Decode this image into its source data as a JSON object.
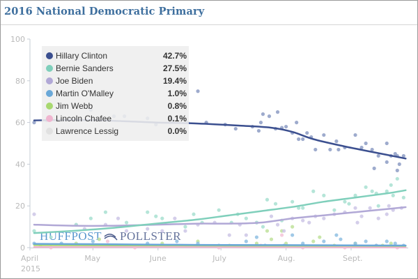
{
  "title": "2016 National Democratic Primary",
  "watermark": {
    "left": "HUFFPOST",
    "right": "POLLSTER",
    "icon": "pollster-swoosh-icon"
  },
  "chart_data": {
    "type": "scatter",
    "title": "2016 National Democratic Primary",
    "xlabel": "",
    "ylabel": "",
    "ylim": [
      0,
      100
    ],
    "yticks": [
      "0",
      "20",
      "40",
      "60",
      "80",
      "100"
    ],
    "ytick_values": [
      0,
      20,
      40,
      60,
      80,
      100
    ],
    "xticks": [
      {
        "label": "April",
        "sub": "2015",
        "day": 0
      },
      {
        "label": "May",
        "sub": "",
        "day": 30
      },
      {
        "label": "June",
        "sub": "",
        "day": 61
      },
      {
        "label": "July",
        "sub": "",
        "day": 91
      },
      {
        "label": "Aug.",
        "sub": "",
        "day": 122
      },
      {
        "label": "Sept.",
        "sub": "",
        "day": 153
      }
    ],
    "x_unit": "days since 2015-04-01",
    "xlim": [
      -3,
      180
    ],
    "grid": false,
    "legend_position": "top-left",
    "series": [
      {
        "name": "Hillary Clinton",
        "value_label": "42.7%",
        "color": "#3b4f8f",
        "dot_color": "#8d9cc4",
        "trend": [
          [
            2,
            61
          ],
          [
            20,
            61.2
          ],
          [
            40,
            60.8
          ],
          [
            60,
            60
          ],
          [
            80,
            59.5
          ],
          [
            100,
            58.5
          ],
          [
            115,
            57.5
          ],
          [
            125,
            55.5
          ],
          [
            135,
            52
          ],
          [
            150,
            48.5
          ],
          [
            165,
            45.5
          ],
          [
            179,
            42.7
          ]
        ],
        "points": [
          [
            2,
            60
          ],
          [
            8,
            61
          ],
          [
            29,
            66
          ],
          [
            40,
            63
          ],
          [
            45,
            63
          ],
          [
            56,
            62
          ],
          [
            60,
            59
          ],
          [
            68,
            61
          ],
          [
            75,
            60
          ],
          [
            80,
            75
          ],
          [
            84,
            60
          ],
          [
            93,
            59
          ],
          [
            98,
            57
          ],
          [
            106,
            58
          ],
          [
            109,
            56
          ],
          [
            111,
            64
          ],
          [
            114,
            63
          ],
          [
            117,
            57
          ],
          [
            120,
            57.5
          ],
          [
            122,
            58
          ],
          [
            125,
            55
          ],
          [
            127,
            60
          ],
          [
            130,
            52
          ],
          [
            132,
            55
          ],
          [
            134,
            53
          ],
          [
            140,
            54
          ],
          [
            146,
            51
          ],
          [
            150,
            48
          ],
          [
            155,
            54
          ],
          [
            163,
            47
          ],
          [
            170,
            50
          ],
          [
            175,
            44
          ],
          [
            178,
            44
          ],
          [
            118,
            65
          ],
          [
            110,
            60
          ],
          [
            128,
            52
          ],
          [
            136,
            47
          ],
          [
            158,
            48
          ],
          [
            166,
            44
          ],
          [
            170,
            41
          ],
          [
            172,
            44
          ],
          [
            176,
            40
          ],
          [
            174,
            45
          ],
          [
            160,
            50
          ],
          [
            147,
            47
          ],
          [
            143,
            47
          ],
          [
            164,
            38
          ],
          [
            175,
            37
          ]
        ]
      },
      {
        "name": "Bernie Sanders",
        "value_label": "27.5%",
        "color": "#7fcfbb",
        "dot_color": "#a8e0d1",
        "trend": [
          [
            2,
            7
          ],
          [
            20,
            8
          ],
          [
            40,
            9.5
          ],
          [
            60,
            11.5
          ],
          [
            80,
            13.5
          ],
          [
            95,
            15.5
          ],
          [
            110,
            17.5
          ],
          [
            125,
            19.5
          ],
          [
            140,
            22
          ],
          [
            155,
            24
          ],
          [
            170,
            26
          ],
          [
            179,
            27.5
          ]
        ],
        "points": [
          [
            2,
            8
          ],
          [
            10,
            5
          ],
          [
            22,
            11
          ],
          [
            29,
            14
          ],
          [
            36,
            17
          ],
          [
            46,
            12
          ],
          [
            56,
            17
          ],
          [
            63,
            14
          ],
          [
            74,
            10
          ],
          [
            78,
            16
          ],
          [
            90,
            18
          ],
          [
            96,
            12
          ],
          [
            103,
            14
          ],
          [
            108,
            12
          ],
          [
            113,
            23
          ],
          [
            117,
            21
          ],
          [
            120,
            13
          ],
          [
            125,
            22
          ],
          [
            130,
            19
          ],
          [
            135,
            27
          ],
          [
            140,
            25
          ],
          [
            145,
            18
          ],
          [
            150,
            22
          ],
          [
            155,
            25
          ],
          [
            160,
            29
          ],
          [
            163,
            27
          ],
          [
            166,
            20
          ],
          [
            170,
            27
          ],
          [
            172,
            30
          ],
          [
            175,
            33
          ],
          [
            178,
            24
          ],
          [
            60,
            15
          ],
          [
            82,
            12
          ],
          [
            99,
            16
          ],
          [
            111,
            10
          ],
          [
            128,
            19
          ],
          [
            152,
            21
          ],
          [
            165,
            26
          ],
          [
            173,
            25
          ]
        ]
      },
      {
        "name": "Joe Biden",
        "value_label": "19.4%",
        "color": "#b1a8d6",
        "dot_color": "#cdc6e6",
        "trend": [
          [
            2,
            11
          ],
          [
            20,
            10.5
          ],
          [
            40,
            10.5
          ],
          [
            60,
            11
          ],
          [
            80,
            11.5
          ],
          [
            95,
            11.5
          ],
          [
            110,
            12
          ],
          [
            125,
            14
          ],
          [
            140,
            15.5
          ],
          [
            155,
            17
          ],
          [
            170,
            18.5
          ],
          [
            179,
            19.4
          ]
        ],
        "points": [
          [
            2,
            16
          ],
          [
            22,
            11
          ],
          [
            26,
            9
          ],
          [
            36,
            11
          ],
          [
            46,
            8
          ],
          [
            56,
            9
          ],
          [
            63,
            8
          ],
          [
            74,
            8
          ],
          [
            80,
            11
          ],
          [
            88,
            12
          ],
          [
            95,
            6
          ],
          [
            103,
            6
          ],
          [
            108,
            12
          ],
          [
            115,
            15
          ],
          [
            118,
            11
          ],
          [
            121,
            8
          ],
          [
            125,
            14
          ],
          [
            130,
            13
          ],
          [
            136,
            15
          ],
          [
            140,
            14
          ],
          [
            145,
            16
          ],
          [
            150,
            17
          ],
          [
            155,
            19
          ],
          [
            158,
            15
          ],
          [
            162,
            19
          ],
          [
            166,
            14
          ],
          [
            170,
            16
          ],
          [
            173,
            18
          ],
          [
            177,
            19
          ],
          [
            42,
            14
          ],
          [
            69,
            14
          ],
          [
            100,
            11
          ],
          [
            133,
            12
          ],
          [
            156,
            12
          ],
          [
            171,
            20
          ]
        ]
      },
      {
        "name": "Martin O'Malley",
        "value_label": "1.0%",
        "color": "#6aa8d8",
        "dot_color": "#8fc0e3",
        "trend": [
          [
            2,
            1.8
          ],
          [
            40,
            1.6
          ],
          [
            80,
            1.3
          ],
          [
            120,
            1.2
          ],
          [
            150,
            1.1
          ],
          [
            179,
            1.0
          ]
        ],
        "points": [
          [
            2,
            2
          ],
          [
            15,
            2
          ],
          [
            30,
            3
          ],
          [
            44,
            1
          ],
          [
            56,
            2
          ],
          [
            70,
            3
          ],
          [
            80,
            2
          ],
          [
            90,
            1
          ],
          [
            103,
            3
          ],
          [
            112,
            1
          ],
          [
            121,
            1
          ],
          [
            130,
            2
          ],
          [
            140,
            3
          ],
          [
            148,
            4
          ],
          [
            155,
            2
          ],
          [
            160,
            3
          ],
          [
            165,
            1
          ],
          [
            170,
            3
          ],
          [
            174,
            2
          ],
          [
            178,
            1
          ],
          [
            108,
            5
          ],
          [
            125,
            6
          ],
          [
            146,
            6
          ]
        ]
      },
      {
        "name": "Jim Webb",
        "value_label": "0.8%",
        "color": "#a8d870",
        "dot_color": "#bfe29b",
        "trend": [
          [
            2,
            1.2
          ],
          [
            40,
            1.1
          ],
          [
            80,
            1.0
          ],
          [
            120,
            0.9
          ],
          [
            150,
            0.9
          ],
          [
            179,
            0.8
          ]
        ],
        "points": [
          [
            5,
            1
          ],
          [
            22,
            2
          ],
          [
            33,
            4
          ],
          [
            48,
            1
          ],
          [
            63,
            2
          ],
          [
            80,
            3
          ],
          [
            95,
            1
          ],
          [
            108,
            2
          ],
          [
            115,
            4
          ],
          [
            122,
            2
          ],
          [
            135,
            3
          ],
          [
            145,
            1
          ],
          [
            155,
            2
          ],
          [
            168,
            1
          ],
          [
            172,
            2
          ],
          [
            113,
            8
          ],
          [
            120,
            8
          ],
          [
            125,
            10
          ],
          [
            138,
            5
          ]
        ]
      },
      {
        "name": "Lincoln Chafee",
        "value_label": "0.1%",
        "color": "#f0b6d0",
        "dot_color": "#f3c3d8",
        "trend": [
          [
            2,
            0.3
          ],
          [
            60,
            0.3
          ],
          [
            120,
            0.2
          ],
          [
            179,
            0.1
          ]
        ],
        "points": [
          [
            10,
            0
          ],
          [
            30,
            1
          ],
          [
            50,
            0
          ],
          [
            70,
            1
          ],
          [
            90,
            0
          ],
          [
            110,
            1
          ],
          [
            130,
            0
          ],
          [
            150,
            0
          ],
          [
            165,
            1
          ],
          [
            175,
            0
          ],
          [
            37,
            3
          ],
          [
            120,
            6
          ]
        ]
      },
      {
        "name": "Lawrence Lessig",
        "value_label": "0.0%",
        "color": "#e1e1e1",
        "dot_color": "#d7d7d7",
        "trend": [],
        "points": []
      }
    ]
  }
}
